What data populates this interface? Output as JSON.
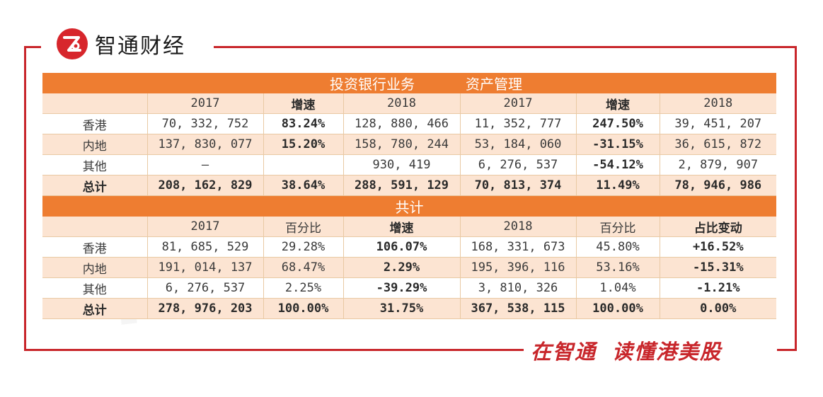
{
  "brand": {
    "logo_text": "智通财经",
    "slogan_left": "在智通",
    "slogan_right": "读懂港美股",
    "accent": "#c8262b",
    "table_orange": "#ee7d31",
    "table_peach": "#fce4d2"
  },
  "table1": {
    "section_left": "投资银行业务",
    "section_right": "资产管理",
    "columns": [
      "",
      "2017",
      "增速",
      "2018",
      "2017",
      "增速",
      "2018"
    ],
    "rows": [
      {
        "label": "香港",
        "c1": "70, 332, 752",
        "c2": "83.24%",
        "c3": "128, 880, 466",
        "c4": "11, 352, 777",
        "c5": "247.50%",
        "c6": "39, 451, 207"
      },
      {
        "label": "内地",
        "c1": "137, 830, 077",
        "c2": "15.20%",
        "c3": "158, 780, 244",
        "c4": "53, 184, 060",
        "c5": "-31.15%",
        "c6": "36, 615, 872"
      },
      {
        "label": "其他",
        "c1": "—",
        "c2": "",
        "c3": "930, 419",
        "c4": "6, 276, 537",
        "c5": "-54.12%",
        "c6": "2, 879, 907"
      },
      {
        "label": "总计",
        "c1": "208, 162, 829",
        "c2": "38.64%",
        "c3": "288, 591, 129",
        "c4": "70, 813, 374",
        "c5": "11.49%",
        "c6": "78, 946, 986"
      }
    ]
  },
  "table2": {
    "section": "共计",
    "columns": [
      "",
      "2017",
      "百分比",
      "增速",
      "2018",
      "百分比",
      "占比变动"
    ],
    "rows": [
      {
        "label": "香港",
        "c1": "81, 685, 529",
        "c2": "29.28%",
        "c3": "106.07%",
        "c4": "168, 331, 673",
        "c5": "45.80%",
        "c6": "+16.52%"
      },
      {
        "label": "内地",
        "c1": "191, 014, 137",
        "c2": "68.47%",
        "c3": "2.29%",
        "c4": "195, 396, 116",
        "c5": "53.16%",
        "c6": "-15.31%"
      },
      {
        "label": "其他",
        "c1": "6, 276, 537",
        "c2": "2.25%",
        "c3": "-39.29%",
        "c4": "3, 810, 326",
        "c5": "1.04%",
        "c6": "-1.21%"
      },
      {
        "label": "总计",
        "c1": "278, 976, 203",
        "c2": "100.00%",
        "c3": "31.75%",
        "c4": "367, 538, 115",
        "c5": "100.00%",
        "c6": "0.00%"
      }
    ]
  }
}
